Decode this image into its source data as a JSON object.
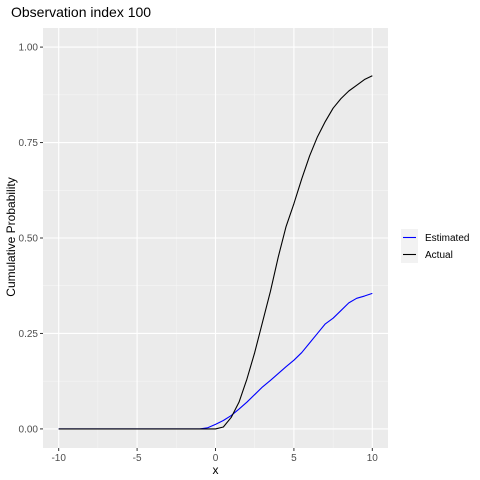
{
  "chart_data": {
    "type": "line",
    "title": "Observation index 100",
    "xlabel": "x",
    "ylabel": "Cumulative Probability",
    "xlim": [
      -11,
      11
    ],
    "ylim": [
      -0.05,
      1.05
    ],
    "x_ticks": [
      -10,
      -5,
      0,
      5,
      10
    ],
    "x_tick_labels": [
      "-10",
      "-5",
      "0",
      "5",
      "10"
    ],
    "y_ticks": [
      0,
      0.25,
      0.5,
      0.75,
      1.0
    ],
    "y_tick_labels": [
      "0.00",
      "0.25",
      "0.50",
      "0.75",
      "1.00"
    ],
    "grid": true,
    "legend_position": "right",
    "series": [
      {
        "name": "Estimated",
        "color": "#0000ff",
        "x": [
          -10,
          -5,
          -1,
          -0.5,
          0,
          0.5,
          1,
          1.5,
          2,
          2.5,
          3,
          3.5,
          4,
          4.5,
          5,
          5.5,
          6,
          6.5,
          7,
          7.5,
          8,
          8.5,
          9,
          9.5,
          10
        ],
        "y": [
          0,
          0,
          0,
          0.003,
          0.012,
          0.022,
          0.035,
          0.052,
          0.07,
          0.09,
          0.11,
          0.127,
          0.145,
          0.163,
          0.18,
          0.2,
          0.225,
          0.25,
          0.275,
          0.29,
          0.31,
          0.33,
          0.342,
          0.348,
          0.355
        ]
      },
      {
        "name": "Actual",
        "color": "#000000",
        "x": [
          -10,
          -5,
          0,
          0.5,
          1,
          1.5,
          2,
          2.5,
          3,
          3.5,
          4,
          4.5,
          5,
          5.5,
          6,
          6.5,
          7,
          7.5,
          8,
          8.5,
          9,
          9.5,
          10
        ],
        "y": [
          0,
          0,
          0,
          0.005,
          0.03,
          0.07,
          0.13,
          0.2,
          0.28,
          0.36,
          0.45,
          0.53,
          0.59,
          0.655,
          0.715,
          0.765,
          0.805,
          0.84,
          0.865,
          0.885,
          0.9,
          0.915,
          0.925
        ]
      }
    ]
  }
}
